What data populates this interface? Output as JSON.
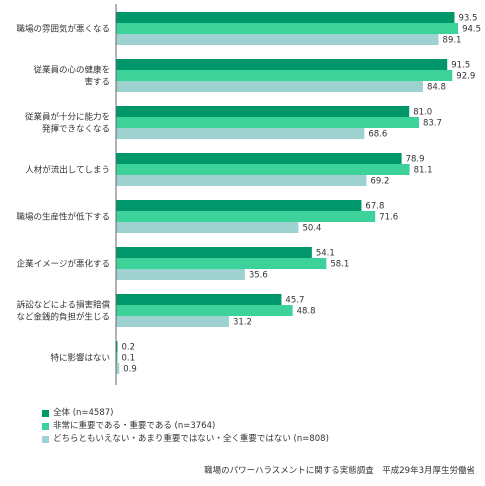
{
  "chart_data": {
    "type": "bar",
    "orientation": "horizontal",
    "categories": [
      [
        "職場の雰囲気が悪くなる"
      ],
      [
        "従業員の心の健康を",
        "害する"
      ],
      [
        "従業員が十分に能力を",
        "発揮できなくなる"
      ],
      [
        "人材が流出してしまう"
      ],
      [
        "職場の生産性が低下する"
      ],
      [
        "企業イメージが悪化する"
      ],
      [
        "訴訟などによる損害賠償",
        "など金銭的負担が生じる"
      ],
      [
        "特に影響はない"
      ]
    ],
    "series": [
      {
        "name": "全体 (n=4587)",
        "color": "#00976a",
        "values": [
          93.5,
          91.5,
          81.0,
          78.9,
          67.8,
          54.1,
          45.7,
          0.2
        ]
      },
      {
        "name": "非常に重要である・重要である (n=3764)",
        "color": "#3cd29a",
        "values": [
          94.5,
          92.9,
          83.7,
          81.1,
          71.6,
          58.1,
          48.8,
          0.1
        ]
      },
      {
        "name": "どちらともいえない・あまり重要ではない・全く重要ではない (n=808)",
        "color": "#9ed2d0",
        "values": [
          89.1,
          84.8,
          68.6,
          69.2,
          50.4,
          35.6,
          31.2,
          0.9
        ]
      }
    ],
    "xlim": [
      0,
      100
    ],
    "grid": false,
    "legend_position": "bottom-left"
  },
  "source_note": "職場のパワーハラスメントに関する実態調査　平成29年3月厚生労働省"
}
